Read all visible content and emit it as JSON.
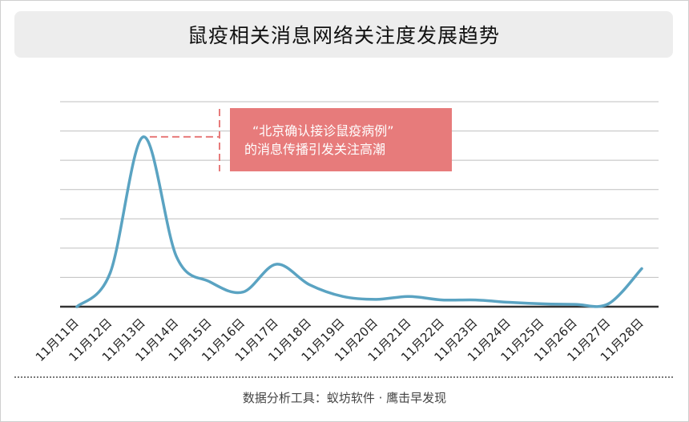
{
  "title": "鼠疫相关消息网络关注度发展趋势",
  "annotation": {
    "line1": "“北京确认接诊鼠疫病例”",
    "line2": "的消息传播引发关注高潮",
    "color": "#e77b7b"
  },
  "footer": "数据分析工具：蚁坊软件 · 鹰击早发现",
  "chart_data": {
    "type": "line",
    "categories": [
      "11月11日",
      "11月12日",
      "11月13日",
      "11月14日",
      "11月15日",
      "11月16日",
      "11月17日",
      "11月18日",
      "11月19日",
      "11月20日",
      "11月21日",
      "11月22日",
      "11月23日",
      "11月24日",
      "11月25日",
      "11月26日",
      "11月27日",
      "11月28日"
    ],
    "values": [
      0,
      11.5,
      58,
      17,
      8.5,
      5,
      14.5,
      7.5,
      3.5,
      2.5,
      3.5,
      2.3,
      2.3,
      1.5,
      1,
      0.8,
      1,
      13
    ],
    "ylim": [
      0,
      70
    ],
    "y_ticks": [
      0,
      10,
      20,
      30,
      40,
      50,
      60,
      70
    ],
    "grid": true,
    "line_color": "#5aa3c2",
    "title": "鼠疫相关消息网络关注度发展趋势",
    "xlabel": "",
    "ylabel": ""
  }
}
